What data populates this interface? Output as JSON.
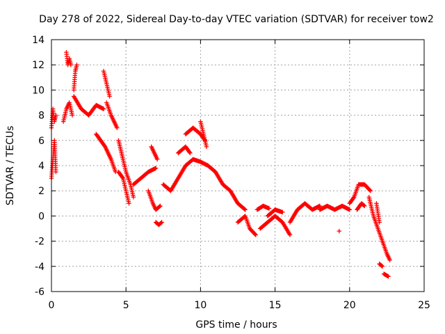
{
  "chart_data": {
    "type": "scatter",
    "title": "Day 278 of 2022, Sidereal Day-to-day VTEC variation (SDTVAR) for receiver tow2",
    "xlabel": "GPS time / hours",
    "ylabel": "SDTVAR / TECUs",
    "xlim": [
      0,
      25
    ],
    "ylim": [
      -6,
      14
    ],
    "xticks": [
      0,
      5,
      10,
      15,
      20,
      25
    ],
    "yticks": [
      -6,
      -4,
      -2,
      0,
      2,
      4,
      6,
      8,
      10,
      12,
      14
    ],
    "grid": true,
    "marker": "+",
    "series_color": "#ff0000",
    "series": [
      {
        "name": "SDTVAR",
        "segments": [
          {
            "x": [
              0.0,
              0.1,
              0.2,
              0.3
            ],
            "y": [
              3.0,
              4.5,
              6.0,
              3.5
            ]
          },
          {
            "x": [
              0.0,
              0.1,
              0.2,
              0.3
            ],
            "y": [
              7.0,
              8.5,
              7.5,
              8.0
            ]
          },
          {
            "x": [
              0.8,
              1.0,
              1.2,
              1.4
            ],
            "y": [
              7.5,
              8.5,
              9.0,
              8.0
            ]
          },
          {
            "x": [
              1.0,
              1.1,
              1.2,
              1.3
            ],
            "y": [
              13.0,
              12.0,
              12.5,
              12.0
            ]
          },
          {
            "x": [
              1.5,
              1.6,
              1.7
            ],
            "y": [
              10.0,
              11.5,
              12.0
            ]
          },
          {
            "x": [
              1.5,
              2.0,
              2.5,
              3.0,
              3.5
            ],
            "y": [
              9.5,
              8.5,
              8.0,
              8.8,
              8.5
            ]
          },
          {
            "x": [
              3.0,
              3.3,
              3.6,
              4.0,
              4.3
            ],
            "y": [
              6.5,
              6.0,
              5.5,
              4.5,
              3.5
            ]
          },
          {
            "x": [
              3.5,
              3.7,
              3.9
            ],
            "y": [
              11.5,
              10.5,
              9.5
            ]
          },
          {
            "x": [
              3.7,
              4.0,
              4.2,
              4.4
            ],
            "y": [
              9.0,
              8.0,
              7.5,
              7.0
            ]
          },
          {
            "x": [
              4.5,
              4.8,
              5.0,
              5.3,
              5.5
            ],
            "y": [
              6.0,
              4.5,
              3.5,
              2.5,
              1.5
            ]
          },
          {
            "x": [
              4.5,
              4.8,
              5.0,
              5.2
            ],
            "y": [
              3.5,
              3.0,
              2.0,
              1.0
            ]
          },
          {
            "x": [
              5.5,
              6.0,
              6.5,
              7.0
            ],
            "y": [
              2.5,
              3.0,
              3.5,
              3.8
            ]
          },
          {
            "x": [
              6.5,
              6.8,
              7.0,
              7.3
            ],
            "y": [
              2.0,
              1.0,
              0.5,
              0.8
            ]
          },
          {
            "x": [
              7.0,
              7.2,
              7.4
            ],
            "y": [
              -0.5,
              -0.7,
              -0.5
            ]
          },
          {
            "x": [
              6.7,
              6.9,
              7.1
            ],
            "y": [
              5.5,
              5.0,
              4.5
            ]
          },
          {
            "x": [
              7.5,
              8.0,
              8.5,
              9.0
            ],
            "y": [
              2.5,
              2.0,
              3.0,
              4.0
            ]
          },
          {
            "x": [
              8.5,
              9.0,
              9.3
            ],
            "y": [
              5.0,
              5.5,
              5.0
            ]
          },
          {
            "x": [
              9.0,
              9.5,
              10.0,
              10.3
            ],
            "y": [
              6.5,
              7.0,
              6.5,
              6.0
            ]
          },
          {
            "x": [
              9.0,
              9.5,
              10.0,
              10.5,
              11.0
            ],
            "y": [
              4.0,
              4.5,
              4.3,
              4.0,
              3.5
            ]
          },
          {
            "x": [
              10.0,
              10.2,
              10.4
            ],
            "y": [
              7.5,
              6.5,
              5.5
            ]
          },
          {
            "x": [
              11.0,
              11.5,
              12.0,
              12.5,
              13.0
            ],
            "y": [
              3.5,
              2.5,
              2.0,
              1.0,
              0.5
            ]
          },
          {
            "x": [
              12.5,
              13.0,
              13.3,
              13.7
            ],
            "y": [
              -0.5,
              0.0,
              -1.0,
              -1.5
            ]
          },
          {
            "x": [
              13.8,
              14.2,
              14.6
            ],
            "y": [
              0.5,
              0.8,
              0.6
            ]
          },
          {
            "x": [
              14.0,
              14.5,
              15.0,
              15.5,
              16.0
            ],
            "y": [
              -1.0,
              -0.5,
              0.0,
              -0.5,
              -1.5
            ]
          },
          {
            "x": [
              14.5,
              15.0,
              15.5
            ],
            "y": [
              0.0,
              0.5,
              0.3
            ]
          },
          {
            "x": [
              16.0,
              16.5,
              17.0,
              17.5,
              18.0
            ],
            "y": [
              -0.5,
              0.5,
              1.0,
              0.5,
              0.8
            ]
          },
          {
            "x": [
              18.0,
              18.5,
              19.0,
              19.5,
              20.0
            ],
            "y": [
              0.5,
              0.8,
              0.5,
              0.8,
              0.5
            ]
          },
          {
            "x": [
              19.3
            ],
            "y": [
              -1.2
            ]
          },
          {
            "x": [
              20.0,
              20.3,
              20.6,
              21.0,
              21.4
            ],
            "y": [
              1.0,
              1.5,
              2.5,
              2.5,
              2.0
            ]
          },
          {
            "x": [
              20.5,
              20.8,
              21.0
            ],
            "y": [
              0.5,
              1.0,
              0.8
            ]
          },
          {
            "x": [
              21.3,
              21.6,
              21.9,
              22.2
            ],
            "y": [
              1.5,
              0.0,
              -1.0,
              -2.0
            ]
          },
          {
            "x": [
              21.8,
              22.0
            ],
            "y": [
              1.0,
              -0.5
            ]
          },
          {
            "x": [
              22.0,
              22.2
            ],
            "y": [
              -3.8,
              -4.0
            ]
          },
          {
            "x": [
              22.2,
              22.5,
              22.7
            ],
            "y": [
              -2.0,
              -3.0,
              -3.5
            ]
          },
          {
            "x": [
              22.3,
              22.6
            ],
            "y": [
              -4.6,
              -4.8
            ]
          }
        ]
      }
    ]
  }
}
